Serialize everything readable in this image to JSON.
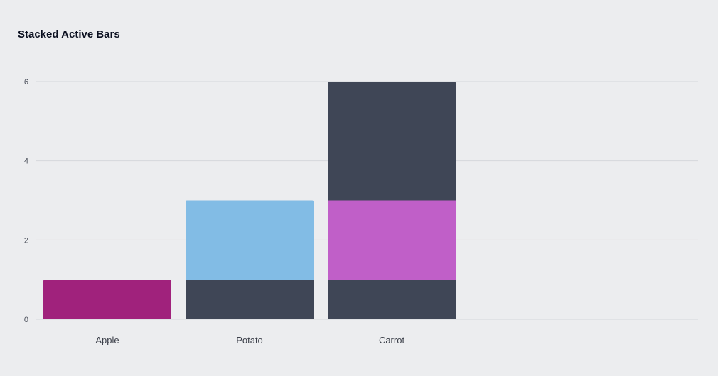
{
  "chart_data": {
    "type": "bar",
    "stacked": true,
    "title": "Stacked Active Bars",
    "categories": [
      "Apple",
      "Potato",
      "Carrot"
    ],
    "series": [
      {
        "values": [
          1,
          0,
          0
        ],
        "color": "#A0227C"
      },
      {
        "values": [
          0,
          1,
          1
        ],
        "color": "#3F4656"
      },
      {
        "values": [
          0,
          2,
          0
        ],
        "color": "#82BCE5"
      },
      {
        "values": [
          0,
          0,
          2
        ],
        "color": "#C05FC8"
      },
      {
        "values": [
          0,
          0,
          3
        ],
        "color": "#3F4656"
      }
    ],
    "ylim": [
      0,
      6
    ],
    "yticks": [
      0,
      2,
      4,
      6
    ],
    "grid": true,
    "legend": "none"
  }
}
